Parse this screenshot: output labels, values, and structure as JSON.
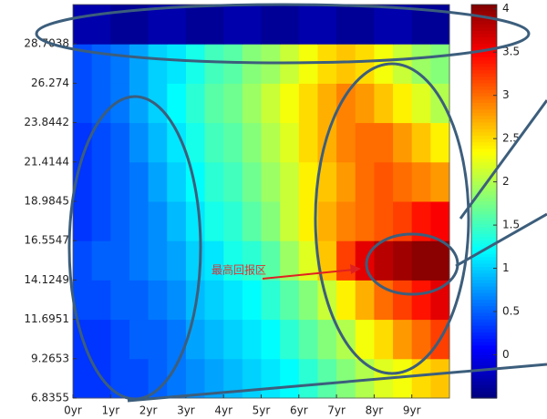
{
  "chart_data": {
    "type": "heatmap",
    "colormap": "jet",
    "annotation": "最高回报区",
    "x": [
      0.25,
      0.75,
      1.25,
      1.75,
      2.25,
      2.75,
      3.25,
      3.75,
      4.25,
      4.75,
      5.25,
      5.75,
      6.25,
      6.75,
      7.25,
      7.75,
      8.25,
      8.75,
      9.25,
      9.75
    ],
    "y": [
      8.0504,
      10.4802,
      12.91,
      15.3398,
      17.7696,
      20.1995,
      22.6293,
      25.0591,
      27.4889,
      29.9187
    ],
    "z": [
      [
        0.3,
        0.3,
        0.4,
        0.4,
        0.5,
        0.6,
        0.7,
        0.8,
        0.9,
        1.0,
        1.1,
        1.2,
        1.4,
        1.6,
        1.8,
        2.0,
        2.2,
        2.3,
        2.5,
        2.6
      ],
      [
        0.3,
        0.3,
        0.4,
        0.5,
        0.5,
        0.6,
        0.8,
        0.9,
        1.0,
        1.1,
        1.2,
        1.4,
        1.6,
        1.8,
        2.0,
        2.3,
        2.5,
        2.8,
        3.0,
        3.2
      ],
      [
        0.4,
        0.4,
        0.5,
        0.5,
        0.6,
        0.7,
        0.9,
        1.0,
        1.1,
        1.2,
        1.4,
        1.6,
        1.8,
        2.1,
        2.4,
        2.7,
        3.0,
        3.2,
        3.4,
        3.6
      ],
      [
        0.4,
        0.5,
        0.5,
        0.6,
        0.7,
        0.8,
        1.0,
        1.1,
        1.3,
        1.4,
        1.6,
        1.9,
        2.2,
        2.6,
        3.2,
        3.6,
        3.8,
        3.9,
        4.0,
        4.0
      ],
      [
        0.3,
        0.4,
        0.5,
        0.6,
        0.7,
        0.9,
        1.1,
        1.3,
        1.4,
        1.6,
        1.8,
        2.1,
        2.4,
        2.7,
        2.9,
        3.0,
        3.1,
        3.2,
        3.4,
        3.5
      ],
      [
        0.3,
        0.4,
        0.5,
        0.6,
        0.8,
        1.0,
        1.2,
        1.4,
        1.5,
        1.7,
        1.9,
        2.1,
        2.4,
        2.6,
        2.8,
        3.0,
        3.1,
        3.0,
        2.9,
        2.8
      ],
      [
        0.3,
        0.4,
        0.5,
        0.7,
        0.9,
        1.1,
        1.3,
        1.5,
        1.6,
        1.8,
        2.0,
        2.2,
        2.5,
        2.7,
        2.9,
        3.0,
        3.0,
        2.8,
        2.6,
        2.4
      ],
      [
        0.4,
        0.5,
        0.6,
        0.8,
        1.0,
        1.2,
        1.4,
        1.6,
        1.7,
        1.9,
        2.1,
        2.3,
        2.5,
        2.7,
        2.9,
        2.8,
        2.6,
        2.4,
        2.2,
        2.0
      ],
      [
        0.4,
        0.5,
        0.6,
        0.8,
        1.0,
        1.1,
        1.3,
        1.5,
        1.6,
        1.8,
        1.9,
        2.1,
        2.3,
        2.5,
        2.6,
        2.5,
        2.3,
        2.1,
        1.9,
        1.8
      ],
      [
        -0.3,
        -0.3,
        -0.4,
        -0.4,
        -0.3,
        -0.3,
        -0.4,
        -0.4,
        -0.3,
        -0.3,
        -0.4,
        -0.4,
        -0.3,
        -0.3,
        -0.4,
        -0.4,
        -0.3,
        -0.3,
        -0.4,
        -0.4
      ]
    ],
    "xlim": [
      0,
      10
    ],
    "xticks": [
      {
        "value": 0,
        "label": "0yr"
      },
      {
        "value": 1,
        "label": "1yr"
      },
      {
        "value": 2,
        "label": "2yr"
      },
      {
        "value": 3,
        "label": "3yr"
      },
      {
        "value": 4,
        "label": "4yr"
      },
      {
        "value": 5,
        "label": "5yr"
      },
      {
        "value": 6,
        "label": "6yr"
      },
      {
        "value": 7,
        "label": "7yr"
      },
      {
        "value": 8,
        "label": "8yr"
      },
      {
        "value": 9,
        "label": "9yr"
      }
    ],
    "ylim": [
      6.8355,
      31.1336
    ],
    "yticks": [
      6.8355,
      9.2653,
      11.6951,
      14.1249,
      16.5547,
      18.9845,
      21.4144,
      23.8442,
      26.274,
      28.7038
    ],
    "clim": [
      -0.5,
      4.05
    ],
    "cticks": [
      0,
      0.5,
      1,
      1.5,
      2,
      2.5,
      3,
      3.5,
      4
    ]
  }
}
